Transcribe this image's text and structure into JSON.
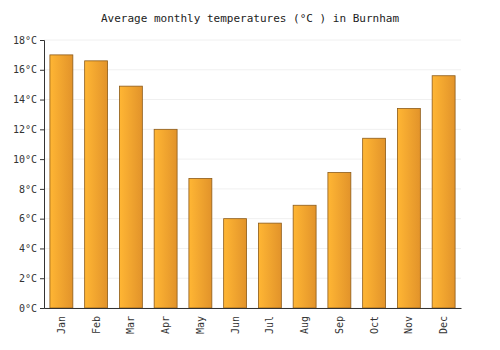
{
  "chart_data": {
    "type": "bar",
    "title": "Average monthly temperatures (°C ) in Burnham",
    "categories": [
      "Jan",
      "Feb",
      "Mar",
      "Apr",
      "May",
      "Jun",
      "Jul",
      "Aug",
      "Sep",
      "Oct",
      "Nov",
      "Dec"
    ],
    "values": [
      17.0,
      16.6,
      14.9,
      12.0,
      8.7,
      6.0,
      5.7,
      6.9,
      9.1,
      11.4,
      13.4,
      15.6
    ],
    "color": "#f7a12e",
    "ylim": [
      0,
      18
    ],
    "yticks": [
      {
        "value": 0,
        "label": "0°C"
      },
      {
        "value": 2,
        "label": "2°C"
      },
      {
        "value": 4,
        "label": "4°C"
      },
      {
        "value": 6,
        "label": "6°C"
      },
      {
        "value": 8,
        "label": "8°C"
      },
      {
        "value": 10,
        "label": "10°C"
      },
      {
        "value": 12,
        "label": "12°C"
      },
      {
        "value": 14,
        "label": "14°C"
      },
      {
        "value": 16,
        "label": "16°C"
      },
      {
        "value": 18,
        "label": "18°C"
      }
    ],
    "grid": true
  }
}
